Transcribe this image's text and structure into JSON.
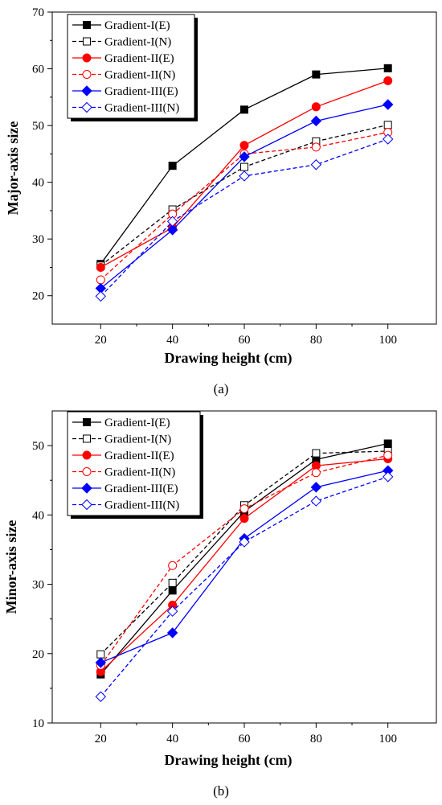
{
  "chart_data": [
    {
      "type": "line",
      "caption": "(a)",
      "xlabel": "Drawing height (cm)",
      "ylabel": "Major-axis size",
      "x": [
        20,
        40,
        60,
        80,
        100
      ],
      "xticks": [
        20,
        40,
        60,
        80,
        100
      ],
      "yticks": [
        20,
        30,
        40,
        50,
        60,
        70
      ],
      "xlim": [
        6.5,
        113.5
      ],
      "ylim": [
        15,
        70
      ],
      "grid": false,
      "legend_position": "top-left",
      "series": [
        {
          "name": "Gradient-I(E)",
          "color": "#000000",
          "dashed": false,
          "marker": "square-filled",
          "values": [
            25.6,
            42.9,
            52.8,
            59.0,
            60.1
          ]
        },
        {
          "name": "Gradient-I(N)",
          "color": "#000000",
          "dashed": true,
          "marker": "square-open",
          "values": [
            25.3,
            35.2,
            42.7,
            47.2,
            50.1
          ]
        },
        {
          "name": "Gradient-II(E)",
          "color": "#ff0000",
          "dashed": false,
          "marker": "circle-filled",
          "values": [
            25.0,
            32.0,
            46.5,
            53.3,
            57.9
          ]
        },
        {
          "name": "Gradient-II(N)",
          "color": "#ff0000",
          "dashed": true,
          "marker": "circle-open",
          "values": [
            22.8,
            34.4,
            45.0,
            46.2,
            48.8
          ]
        },
        {
          "name": "Gradient-III(E)",
          "color": "#0000ff",
          "dashed": false,
          "marker": "diamond-filled",
          "values": [
            21.3,
            31.6,
            44.5,
            50.8,
            53.7
          ]
        },
        {
          "name": "Gradient-III(N)",
          "color": "#0000ff",
          "dashed": true,
          "marker": "diamond-open",
          "values": [
            19.9,
            33.1,
            41.1,
            43.1,
            47.6
          ]
        }
      ]
    },
    {
      "type": "line",
      "caption": "(b)",
      "xlabel": "Drawing height (cm)",
      "ylabel": "Minor-axis size",
      "x": [
        20,
        40,
        60,
        80,
        100
      ],
      "xticks": [
        20,
        40,
        60,
        80,
        100
      ],
      "yticks": [
        10,
        20,
        30,
        40,
        50
      ],
      "xlim": [
        6.5,
        113.5
      ],
      "ylim": [
        10,
        55
      ],
      "grid": false,
      "legend_position": "top-left",
      "series": [
        {
          "name": "Gradient-I(E)",
          "color": "#000000",
          "dashed": false,
          "marker": "square-filled",
          "values": [
            17.0,
            29.1,
            40.5,
            48.0,
            50.3
          ]
        },
        {
          "name": "Gradient-I(N)",
          "color": "#000000",
          "dashed": true,
          "marker": "square-open",
          "values": [
            19.9,
            30.2,
            41.4,
            48.9,
            49.2
          ]
        },
        {
          "name": "Gradient-II(E)",
          "color": "#ff0000",
          "dashed": false,
          "marker": "circle-filled",
          "values": [
            17.4,
            27.0,
            39.5,
            47.1,
            48.1
          ]
        },
        {
          "name": "Gradient-II(N)",
          "color": "#ff0000",
          "dashed": true,
          "marker": "circle-open",
          "values": [
            18.3,
            32.7,
            40.9,
            46.1,
            48.6
          ]
        },
        {
          "name": "Gradient-III(E)",
          "color": "#0000ff",
          "dashed": false,
          "marker": "diamond-filled",
          "values": [
            18.7,
            23.0,
            36.6,
            44.0,
            46.4
          ]
        },
        {
          "name": "Gradient-III(N)",
          "color": "#0000ff",
          "dashed": true,
          "marker": "diamond-open",
          "values": [
            13.8,
            26.1,
            36.1,
            42.0,
            45.5
          ]
        }
      ]
    }
  ]
}
